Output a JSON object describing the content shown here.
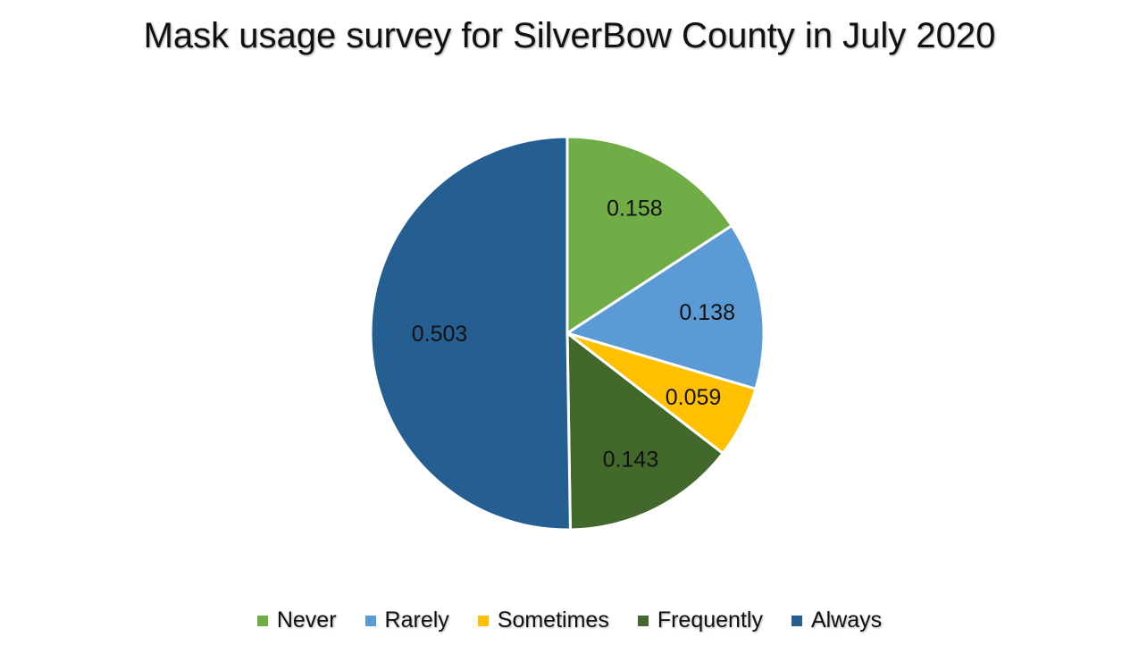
{
  "chart_data": {
    "type": "pie",
    "title": "Mask usage survey for SilverBow County in July 2020",
    "categories": [
      "Never",
      "Rarely",
      "Sometimes",
      "Frequently",
      "Always"
    ],
    "values": [
      0.158,
      0.138,
      0.059,
      0.143,
      0.503
    ],
    "value_labels": [
      "0.158",
      "0.138",
      "0.059",
      "0.143",
      "0.503"
    ],
    "colors": [
      "#70AD47",
      "#5B9BD5",
      "#FFC000",
      "#43682B",
      "#255E91"
    ],
    "start_angle": "12 o'clock",
    "direction": "clockwise",
    "legend_position": "bottom"
  }
}
